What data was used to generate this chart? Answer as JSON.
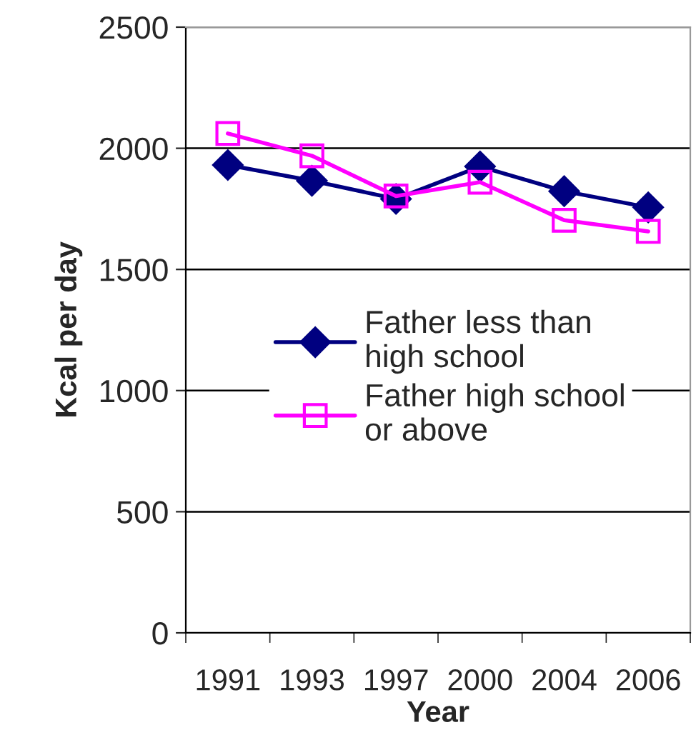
{
  "chart_data": {
    "type": "line",
    "xlabel": "Year",
    "ylabel": "Kcal per day",
    "categories": [
      "1991",
      "1993",
      "1997",
      "2000",
      "2004",
      "2006"
    ],
    "series": [
      {
        "name": "Father less than\nhigh school",
        "color": "#000080",
        "marker": "diamond",
        "values": [
          1931,
          1866,
          1791,
          1925,
          1823,
          1756
        ]
      },
      {
        "name": "Father high school\nor above",
        "color": "#ff00ff",
        "marker": "square",
        "values": [
          2061,
          1969,
          1803,
          1860,
          1703,
          1657
        ]
      }
    ],
    "ylim": [
      0,
      2500
    ],
    "yticks": [
      0,
      500,
      1000,
      1500,
      2000,
      2500
    ],
    "grid": "y",
    "legend": "center"
  }
}
